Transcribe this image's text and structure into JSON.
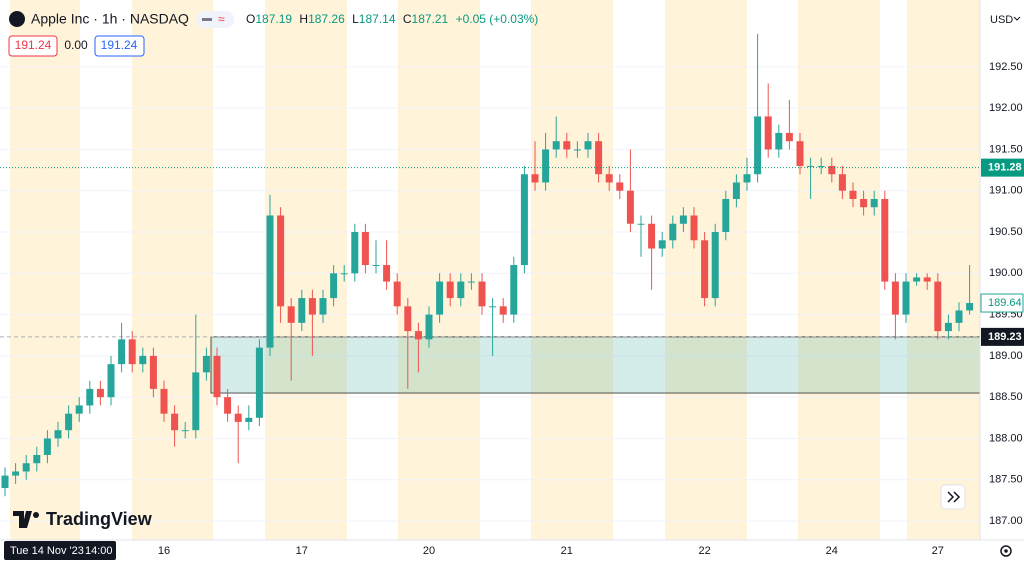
{
  "header": {
    "symbol": "Apple Inc · 1h · NASDAQ",
    "open_label": "O",
    "open": "187.19",
    "high_label": "H",
    "high": "187.26",
    "low_label": "L",
    "low": "187.14",
    "close_label": "C",
    "close": "187.21",
    "change": "+0.05 (+0.03%)"
  },
  "indicator": [
    "191.24",
    "0.00",
    "191.24"
  ],
  "currency": "USD",
  "brand": "TradingView",
  "crosshair_date": "Tue 14 Nov '23",
  "crosshair_time": "14:00",
  "chart_data": {
    "type": "candlestick",
    "up_color": "#26a69a",
    "down_color": "#ef5350",
    "categories": [
      null,
      null,
      null,
      null,
      null,
      null,
      null,
      null,
      null,
      null,
      null,
      null,
      null,
      null,
      null,
      "16",
      null,
      null,
      null,
      null,
      null,
      null,
      null,
      null,
      null,
      null,
      null,
      null,
      "17",
      null,
      null,
      null,
      null,
      null,
      null,
      null,
      null,
      null,
      null,
      null,
      "20",
      null,
      null,
      null,
      null,
      null,
      null,
      null,
      null,
      null,
      null,
      null,
      null,
      "21",
      null,
      null,
      null,
      null,
      null,
      null,
      null,
      null,
      null,
      null,
      null,
      null,
      "22",
      null,
      null,
      null,
      null,
      null,
      null,
      null,
      null,
      null,
      null,
      null,
      "24",
      null,
      null,
      null,
      null,
      null,
      null,
      null,
      null,
      null,
      "27",
      null,
      null,
      null
    ],
    "open": [
      187.4,
      187.55,
      187.6,
      187.7,
      187.8,
      188.0,
      188.1,
      188.3,
      188.4,
      188.6,
      188.5,
      188.9,
      189.2,
      188.9,
      189.0,
      188.6,
      188.3,
      188.1,
      188.1,
      188.8,
      189.0,
      188.5,
      188.3,
      188.2,
      188.25,
      189.1,
      190.7,
      189.6,
      189.4,
      189.7,
      189.5,
      189.7,
      190.0,
      190.0,
      190.5,
      190.1,
      190.1,
      189.9,
      189.6,
      189.3,
      189.2,
      189.5,
      189.9,
      189.7,
      189.9,
      189.9,
      189.6,
      189.6,
      189.5,
      190.1,
      191.2,
      191.1,
      191.5,
      191.6,
      191.5,
      191.5,
      191.6,
      191.2,
      191.1,
      191.0,
      190.6,
      190.6,
      190.3,
      190.4,
      190.6,
      190.7,
      190.4,
      189.7,
      190.5,
      190.9,
      191.1,
      191.2,
      191.9,
      191.5,
      191.7,
      191.6,
      191.3,
      191.3,
      191.3,
      191.2,
      191.0,
      190.9,
      190.8,
      190.9,
      189.9,
      189.5,
      189.9,
      189.95,
      189.9,
      189.3,
      189.4,
      189.55
    ],
    "high": [
      187.65,
      187.7,
      187.8,
      187.9,
      188.1,
      188.2,
      188.4,
      188.5,
      188.7,
      188.7,
      189.0,
      189.4,
      189.3,
      189.1,
      189.1,
      188.7,
      188.4,
      188.2,
      189.5,
      189.1,
      189.1,
      188.6,
      188.4,
      188.4,
      189.2,
      190.95,
      190.8,
      189.7,
      189.8,
      189.8,
      189.8,
      190.1,
      190.1,
      190.6,
      190.6,
      190.4,
      190.4,
      190.0,
      189.7,
      189.4,
      189.6,
      190.0,
      190.0,
      190.0,
      190.0,
      190.0,
      189.7,
      189.7,
      190.2,
      191.3,
      191.6,
      191.7,
      191.9,
      191.7,
      191.6,
      191.7,
      191.7,
      191.3,
      191.2,
      191.5,
      190.7,
      190.7,
      190.5,
      190.7,
      190.8,
      190.8,
      190.5,
      190.6,
      191.0,
      191.2,
      191.4,
      192.9,
      192.3,
      191.8,
      192.1,
      191.7,
      191.4,
      191.4,
      191.4,
      191.3,
      191.1,
      191.0,
      191.0,
      191.0,
      190.0,
      190.0,
      190.0,
      190.0,
      190.0,
      189.5,
      189.65,
      190.1
    ],
    "low": [
      187.3,
      187.45,
      187.5,
      187.6,
      187.7,
      187.9,
      188.0,
      188.2,
      188.3,
      188.4,
      188.4,
      188.8,
      188.8,
      188.8,
      188.5,
      188.2,
      187.9,
      188.0,
      188.0,
      188.7,
      188.4,
      188.2,
      187.7,
      188.1,
      188.15,
      189.0,
      189.4,
      188.7,
      189.3,
      189.0,
      189.4,
      189.6,
      189.9,
      189.9,
      190.0,
      190.0,
      189.8,
      189.5,
      188.6,
      188.8,
      189.1,
      189.4,
      189.6,
      189.6,
      189.8,
      189.5,
      189.0,
      189.4,
      189.4,
      190.0,
      191.0,
      191.0,
      191.4,
      191.4,
      191.4,
      191.4,
      191.1,
      191.0,
      190.9,
      190.5,
      190.2,
      189.8,
      190.2,
      190.3,
      190.5,
      190.3,
      189.6,
      189.6,
      190.4,
      190.8,
      191.0,
      191.1,
      191.4,
      191.4,
      191.5,
      191.2,
      190.9,
      191.2,
      191.1,
      190.9,
      190.8,
      190.7,
      190.7,
      189.8,
      189.2,
      189.4,
      189.85,
      189.8,
      189.2,
      189.2,
      189.3,
      189.5
    ],
    "close": [
      187.55,
      187.6,
      187.7,
      187.8,
      188.0,
      188.1,
      188.3,
      188.4,
      188.6,
      188.5,
      188.9,
      189.2,
      188.9,
      189.0,
      188.6,
      188.3,
      188.1,
      188.1,
      188.8,
      189.0,
      188.5,
      188.3,
      188.2,
      188.25,
      189.1,
      190.7,
      189.6,
      189.4,
      189.7,
      189.5,
      189.7,
      190.0,
      190.0,
      190.5,
      190.1,
      190.1,
      189.9,
      189.6,
      189.3,
      189.2,
      189.5,
      189.9,
      189.7,
      189.9,
      189.9,
      189.6,
      189.6,
      189.5,
      190.1,
      191.2,
      191.1,
      191.5,
      191.6,
      191.5,
      191.5,
      191.6,
      191.2,
      191.1,
      191.0,
      190.6,
      190.6,
      190.3,
      190.4,
      190.6,
      190.7,
      190.4,
      189.7,
      190.5,
      190.9,
      191.1,
      191.2,
      191.9,
      191.5,
      191.7,
      191.6,
      191.3,
      191.3,
      191.3,
      191.2,
      191.0,
      190.9,
      190.8,
      190.9,
      189.9,
      189.5,
      189.9,
      189.95,
      189.9,
      189.3,
      189.4,
      189.55,
      189.64
    ],
    "ylim": [
      186.77,
      193.31
    ],
    "yticks": [
      {
        "value": 187,
        "label": "187.00"
      },
      {
        "value": 187.5,
        "label": "187.50"
      },
      {
        "value": 188,
        "label": "188.00"
      },
      {
        "value": 188.5,
        "label": "188.50"
      },
      {
        "value": 189,
        "label": "189.00"
      },
      {
        "value": 189.5,
        "label": "189.50"
      },
      {
        "value": 190,
        "label": "190.00"
      },
      {
        "value": 190.5,
        "label": "190.50"
      },
      {
        "value": 191,
        "label": "191.00"
      },
      {
        "value": 191.5,
        "label": "191.50"
      },
      {
        "value": 192,
        "label": "192.00"
      },
      {
        "value": 192.5,
        "label": "192.50"
      }
    ],
    "dotted_level": 191.28,
    "last_price": 189.64,
    "box": {
      "top": 189.23,
      "bottom": 188.55
    }
  }
}
